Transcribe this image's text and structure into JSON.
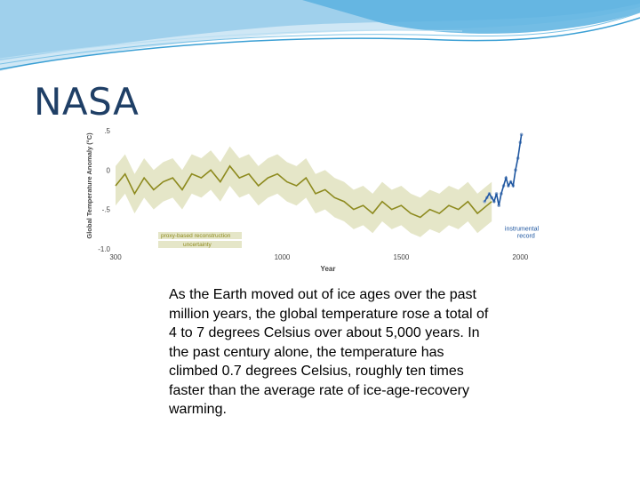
{
  "slide": {
    "title": "NASA",
    "body": "As the Earth moved out of ice ages over the past million years, the global temperature rose a total of 4 to 7 degrees Celsius over about 5,000 years. In the past century alone, the temperature has climbed 0.7 degrees Celsius, roughly ten times faster than the average rate of ice-age-recovery warming."
  },
  "colors": {
    "proxy": "#8d8a1e",
    "uncertainty": "#e5e6c8",
    "instrumental": "#1e56a0",
    "instrumental_points": "#8aa6cc",
    "title": "#1f3f66"
  },
  "chart_data": {
    "type": "line",
    "title": "",
    "xlabel": "Year",
    "ylabel": "Global Temperature Anomaly (°C)",
    "xlim": [
      300,
      2010
    ],
    "ylim": [
      -1.0,
      0.6
    ],
    "x_ticks": [
      "300",
      "1000",
      "1500",
      "2000"
    ],
    "x_tick_values": [
      300,
      1000,
      1500,
      2000
    ],
    "y_ticks": [
      ".5",
      "0",
      "-.5",
      "-1.0"
    ],
    "y_tick_values": [
      0.5,
      0,
      -0.5,
      -1.0
    ],
    "legend": [
      {
        "label": "proxy-based reconstruction",
        "series": "proxy"
      },
      {
        "label": "uncertainty",
        "series": "uncertainty"
      }
    ],
    "annotation": {
      "line1": "instrumental",
      "line2": "record"
    },
    "series": [
      {
        "name": "proxy-based reconstruction",
        "x": [
          300,
          340,
          380,
          420,
          460,
          500,
          540,
          580,
          620,
          660,
          700,
          740,
          780,
          820,
          860,
          900,
          940,
          980,
          1020,
          1060,
          1100,
          1140,
          1180,
          1220,
          1260,
          1300,
          1340,
          1380,
          1420,
          1460,
          1500,
          1540,
          1580,
          1620,
          1660,
          1700,
          1740,
          1780,
          1820,
          1860,
          1880
        ],
        "y": [
          -0.2,
          -0.05,
          -0.3,
          -0.1,
          -0.25,
          -0.15,
          -0.1,
          -0.25,
          -0.05,
          -0.1,
          0.0,
          -0.15,
          0.05,
          -0.1,
          -0.05,
          -0.2,
          -0.1,
          -0.05,
          -0.15,
          -0.2,
          -0.1,
          -0.3,
          -0.25,
          -0.35,
          -0.4,
          -0.5,
          -0.45,
          -0.55,
          -0.4,
          -0.5,
          -0.45,
          -0.55,
          -0.6,
          -0.5,
          -0.55,
          -0.45,
          -0.5,
          -0.4,
          -0.55,
          -0.45,
          -0.4
        ],
        "uncertainty": 0.25
      },
      {
        "name": "instrumental record",
        "x": [
          1850,
          1860,
          1870,
          1880,
          1890,
          1900,
          1910,
          1920,
          1930,
          1940,
          1950,
          1960,
          1970,
          1980,
          1990,
          2000,
          2005
        ],
        "y": [
          -0.4,
          -0.35,
          -0.3,
          -0.35,
          -0.4,
          -0.3,
          -0.45,
          -0.3,
          -0.2,
          -0.1,
          -0.2,
          -0.15,
          -0.2,
          0.0,
          0.15,
          0.35,
          0.45
        ]
      }
    ]
  }
}
